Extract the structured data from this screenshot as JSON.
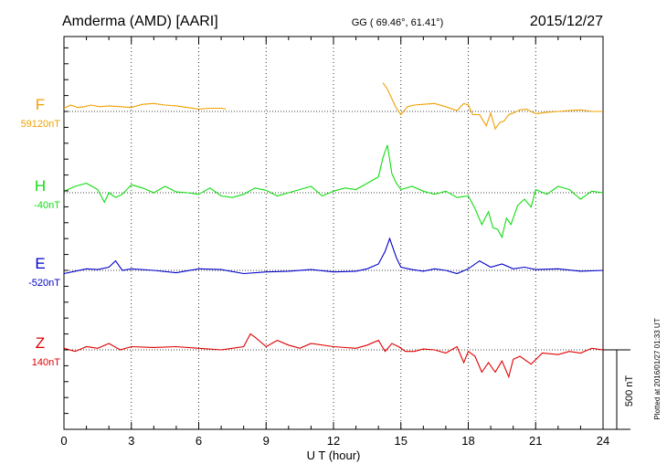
{
  "header": {
    "station": "Amderma (AMD)  [AARI]",
    "coords": "GG ( 69.46°,  61.41°)",
    "date": "2015/12/27"
  },
  "plotted_note": "Plotted at 2016/01/27 01:33 UT",
  "chart_data": {
    "type": "line",
    "title": "Amderma (AMD)  [AARI]",
    "xlabel": "U T (hour)",
    "xlim": [
      0,
      24
    ],
    "xticks": [
      0,
      3,
      6,
      9,
      12,
      15,
      18,
      21,
      24
    ],
    "xtick_labels": [
      "0",
      "3",
      "6",
      "9",
      "12",
      "15",
      "18",
      "21",
      "24"
    ],
    "grid": "dotted vertical lines every 3 hours",
    "scale_bar": {
      "value": 500,
      "label": "500 nT"
    },
    "series": [
      {
        "name": "F",
        "baseline_label": "59120nT",
        "color": "#f0a000",
        "segments": [
          {
            "x": [
              0,
              0.3,
              0.6,
              0.9,
              1.2,
              1.6,
              2,
              2.5,
              3,
              3.5,
              4,
              4.5,
              5,
              5.5,
              6,
              6.5,
              7,
              7.2
            ],
            "y": [
              20,
              40,
              25,
              30,
              40,
              30,
              35,
              30,
              25,
              45,
              50,
              40,
              35,
              25,
              15,
              20,
              20,
              15
            ]
          },
          {
            "x": [
              14.2,
              14.4,
              14.6,
              14.8,
              15,
              15.3,
              15.6,
              16,
              16.5,
              17,
              17.5,
              17.8,
              18,
              18.2,
              18.5,
              18.8,
              19,
              19.2,
              19.4,
              19.6,
              19.8,
              20,
              20.3,
              20.6,
              21,
              21.5,
              22,
              22.5,
              23,
              23.5,
              24
            ],
            "y": [
              180,
              140,
              80,
              20,
              -20,
              30,
              40,
              45,
              50,
              30,
              5,
              50,
              40,
              -20,
              -20,
              -90,
              -10,
              -110,
              -70,
              -60,
              -20,
              -10,
              10,
              15,
              -15,
              -5,
              0,
              5,
              10,
              0,
              0
            ]
          }
        ]
      },
      {
        "name": "H",
        "baseline_label": "-40nT",
        "color": "#11dd11",
        "segments": [
          {
            "x": [
              0,
              0.5,
              1,
              1.5,
              1.8,
              2,
              2.3,
              2.6,
              3,
              3.5,
              4,
              4.5,
              5,
              5.5,
              6,
              6.5,
              7,
              7.5,
              8,
              8.5,
              9,
              9.5,
              10,
              10.5,
              11,
              11.5,
              12,
              12.5,
              13,
              13.5,
              14,
              14.2,
              14.4,
              14.6,
              14.8,
              15,
              15.5,
              16,
              16.5,
              17,
              17.5,
              18,
              18.3,
              18.6,
              18.9,
              19.1,
              19.3,
              19.5,
              19.7,
              19.9,
              20.2,
              20.5,
              20.8,
              21,
              21.5,
              22,
              22.5,
              23,
              23.5,
              24
            ],
            "y": [
              10,
              40,
              60,
              20,
              -60,
              0,
              -30,
              -10,
              50,
              30,
              0,
              40,
              5,
              0,
              -10,
              30,
              -20,
              -30,
              -10,
              30,
              15,
              -20,
              0,
              20,
              40,
              -20,
              10,
              30,
              20,
              60,
              100,
              220,
              300,
              120,
              60,
              20,
              40,
              10,
              -10,
              10,
              -30,
              -20,
              -100,
              -200,
              -120,
              -220,
              -230,
              -280,
              -160,
              -200,
              -80,
              -40,
              -90,
              20,
              -10,
              40,
              20,
              -40,
              10,
              0
            ]
          }
        ]
      },
      {
        "name": "E",
        "baseline_label": "-520nT",
        "color": "#0000cc",
        "segments": [
          {
            "x": [
              0,
              0.5,
              1,
              1.5,
              2,
              2.3,
              2.6,
              3,
              4,
              5,
              6,
              7,
              8,
              9,
              10,
              11,
              12,
              13,
              13.5,
              14,
              14.3,
              14.5,
              14.8,
              15,
              15.5,
              16,
              16.5,
              17,
              17.5,
              18,
              18.5,
              19,
              19.5,
              20,
              20.5,
              21,
              22,
              23,
              24
            ],
            "y": [
              -20,
              -5,
              10,
              5,
              20,
              60,
              0,
              10,
              0,
              -15,
              10,
              5,
              -20,
              -10,
              -5,
              5,
              -10,
              -5,
              10,
              40,
              120,
              200,
              80,
              20,
              5,
              -5,
              10,
              0,
              -20,
              10,
              60,
              20,
              40,
              10,
              20,
              5,
              10,
              -5,
              0
            ]
          }
        ]
      },
      {
        "name": "Z",
        "baseline_label": "140nT",
        "color": "#e00000",
        "segments": [
          {
            "x": [
              0,
              0.5,
              1,
              1.5,
              2,
              2.5,
              3,
              4,
              5,
              6,
              7,
              8,
              8.3,
              8.5,
              9,
              9.5,
              10,
              10.5,
              11,
              12,
              13,
              13.5,
              14,
              14.3,
              14.6,
              14.9,
              15.2,
              15.6,
              16,
              16.5,
              17,
              17.5,
              17.8,
              18,
              18.3,
              18.6,
              18.9,
              19.2,
              19.5,
              19.8,
              20,
              20.3,
              20.8,
              21.3,
              22,
              22.5,
              23,
              23.5,
              24
            ],
            "y": [
              10,
              -10,
              20,
              10,
              40,
              0,
              20,
              15,
              20,
              10,
              0,
              20,
              100,
              80,
              20,
              60,
              30,
              10,
              40,
              20,
              10,
              30,
              60,
              -10,
              40,
              20,
              -10,
              -10,
              5,
              0,
              -20,
              20,
              -80,
              -10,
              -40,
              -140,
              -80,
              -140,
              -70,
              -170,
              -60,
              -40,
              -90,
              -20,
              -30,
              -10,
              -20,
              10,
              0
            ]
          }
        ]
      }
    ]
  }
}
